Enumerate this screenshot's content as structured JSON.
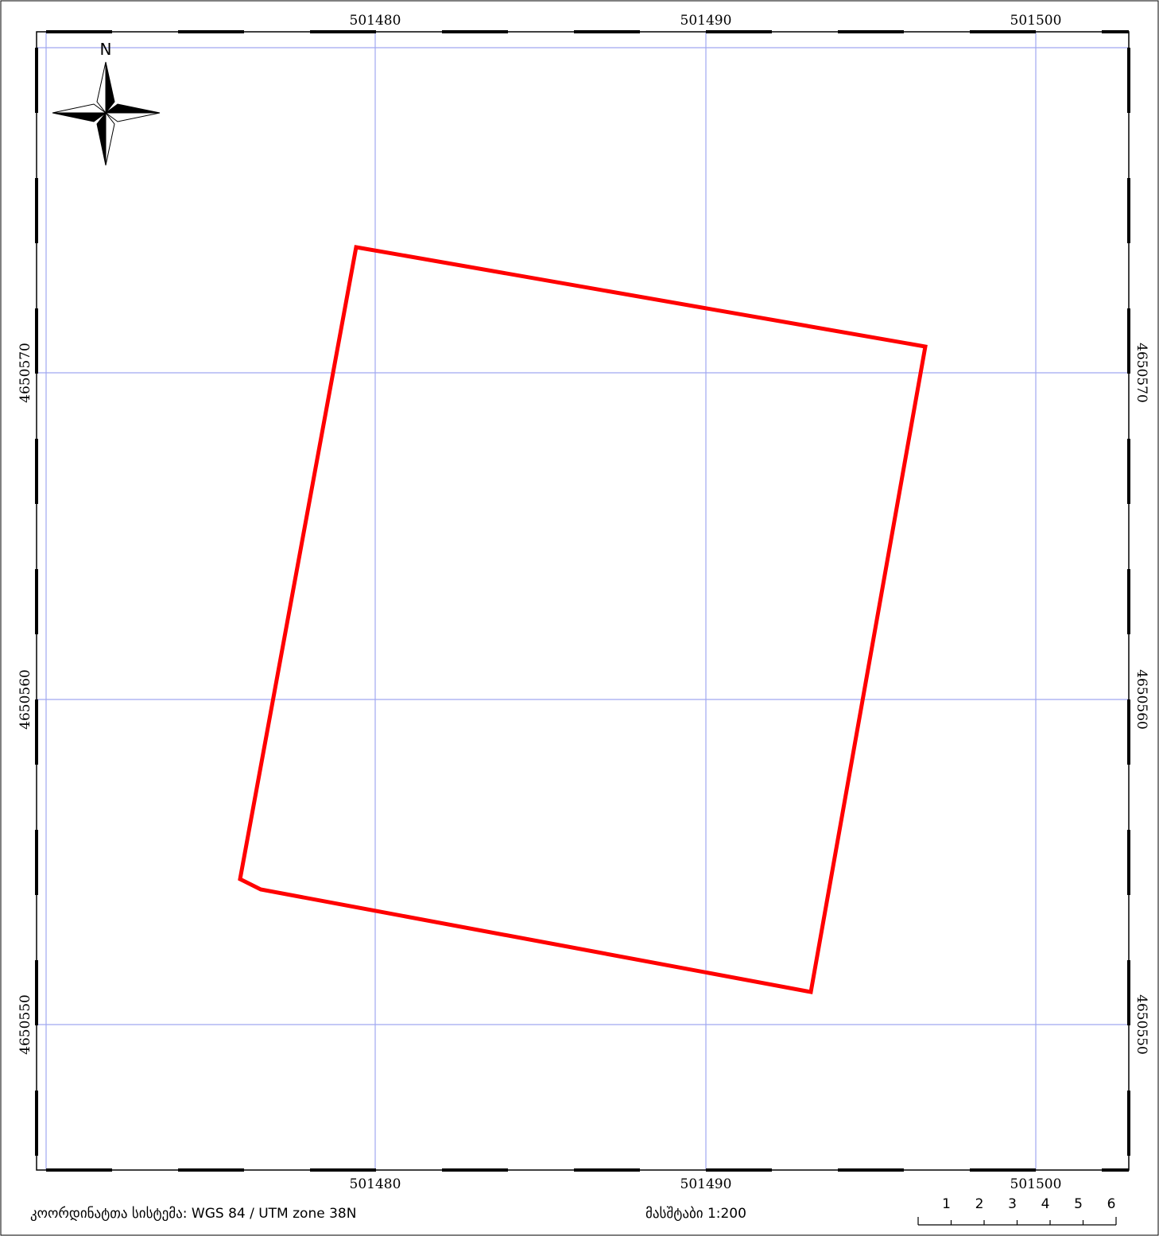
{
  "map": {
    "crs_label": "კოორდინატთა სისტემა: WGS 84 / UTM zone 38N",
    "scale_label": "მასშტაბი 1:200",
    "north_label": "N",
    "grid_x": [
      "501480",
      "501490",
      "501500"
    ],
    "grid_y": [
      "4650570",
      "4650560",
      "4650550"
    ],
    "scalebar_ticks": [
      "1",
      "2",
      "3",
      "4",
      "5",
      "6"
    ],
    "parcel_color": "#ff0000",
    "grid_color": "#a0a8f0"
  }
}
